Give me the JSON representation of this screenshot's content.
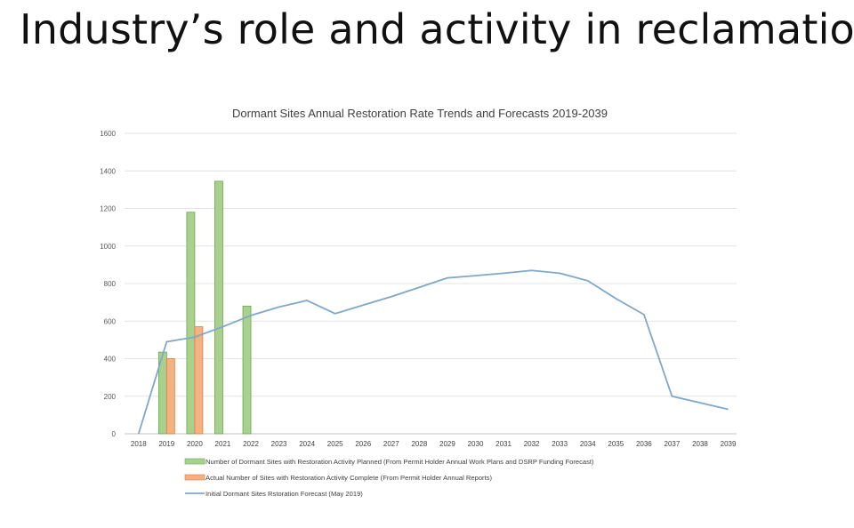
{
  "slide": {
    "title": "Industry’s role and activity in reclamation"
  },
  "chart_data": {
    "type": "bar",
    "title": "Dormant Sites Annual Restoration Rate Trends and Forecasts 2019-2039",
    "xlabel": "",
    "ylabel": "",
    "ylim": [
      0,
      1600
    ],
    "yticks": [
      "0",
      "200",
      "400",
      "600",
      "800",
      "1000",
      "1200",
      "1400",
      "1600"
    ],
    "grid": true,
    "legend_position": "bottom",
    "categories": [
      "2018",
      "2019",
      "2020",
      "2021",
      "2022",
      "2023",
      "2024",
      "2025",
      "2026",
      "2027",
      "2028",
      "2029",
      "2030",
      "2031",
      "2032",
      "2033",
      "2034",
      "2035",
      "2036",
      "2037",
      "2038",
      "2039"
    ],
    "series": [
      {
        "name": "Number of Dormant Sites with Restoration Activity Planned (From Permit Holder Annual Work Plans and DSRP Funding Forecast)",
        "type": "bar",
        "color": "#a9d18e",
        "stroke": "#6aa84f",
        "values": [
          null,
          435,
          1180,
          1345,
          680,
          null,
          null,
          null,
          null,
          null,
          null,
          null,
          null,
          null,
          null,
          null,
          null,
          null,
          null,
          null,
          null,
          null
        ]
      },
      {
        "name": "Actual Number of Sites with Restoration Activity Complete (From Permit Holder Annual Reports)",
        "type": "bar",
        "color": "#f4b183",
        "stroke": "#e07b39",
        "values": [
          null,
          400,
          570,
          null,
          null,
          null,
          null,
          null,
          null,
          null,
          null,
          null,
          null,
          null,
          null,
          null,
          null,
          null,
          null,
          null,
          null,
          null
        ]
      },
      {
        "name": "Initial Dormant Sites Rstoration Forecast (May 2019)",
        "type": "line",
        "color": "#7fa7c9",
        "values": [
          0,
          490,
          515,
          570,
          630,
          675,
          710,
          640,
          685,
          730,
          780,
          830,
          842,
          855,
          870,
          855,
          815,
          720,
          635,
          200,
          165,
          130
        ]
      }
    ]
  }
}
